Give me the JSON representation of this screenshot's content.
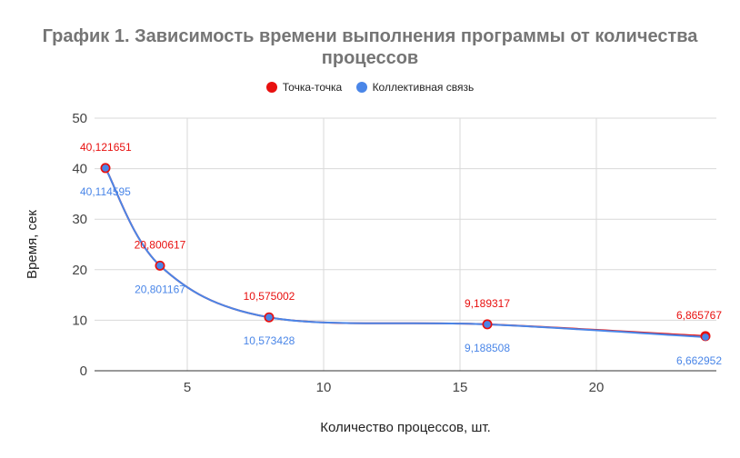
{
  "chart_data": {
    "type": "line",
    "title_lines": [
      "График 1. Зависимость времени выполнения программы от количества",
      "процессов"
    ],
    "xlabel": "Количество процессов, шт.",
    "ylabel": "Время, сек",
    "x": [
      2,
      4,
      8,
      16,
      24
    ],
    "xlim": [
      1.6,
      24.4
    ],
    "ylim": [
      0,
      50
    ],
    "x_ticks": [
      5,
      10,
      15,
      20
    ],
    "y_ticks": [
      0,
      10,
      20,
      30,
      40,
      50
    ],
    "grid": true,
    "legend_position": "top",
    "series": [
      {
        "name": "Точка-точка",
        "color": "#e8100f",
        "values": [
          40.121651,
          20.800617,
          10.575002,
          9.189317,
          6.865767
        ],
        "labels": [
          "40,121651",
          "20,800617",
          "10,575002",
          "9,189317",
          "6,865767"
        ]
      },
      {
        "name": "Коллективная связь",
        "color": "#4a86e8",
        "values": [
          40.114595,
          20.801167,
          10.573428,
          9.188508,
          6.662952
        ],
        "labels": [
          "40,114595",
          "20,801167",
          "10,573428",
          "9,188508",
          "6,662952"
        ]
      }
    ]
  }
}
